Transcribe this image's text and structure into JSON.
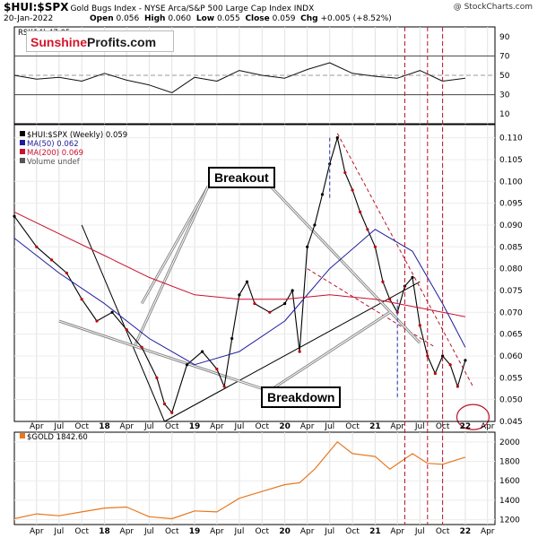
{
  "header": {
    "symbol": "$HUI:$SPX",
    "description": "Gold Bugs Index - NYSE Arca/S&P 500 Large Cap Index  INDX",
    "watermark": "@ StockCharts.com",
    "date": "20-Jan-2022",
    "open_label": "Open",
    "open": "0.056",
    "high_label": "High",
    "high": "0.060",
    "low_label": "Low",
    "low": "0.055",
    "close_label": "Close",
    "close": "0.059",
    "chg_label": "Chg",
    "chg": "+0.005 (+8.52%)"
  },
  "logo": {
    "part1": "Sunshine",
    "part2": "Profits.com"
  },
  "annotations": {
    "breakout": "Breakout",
    "breakdown": "Breakdown"
  },
  "colors": {
    "price": "#000000",
    "price_red": "#c00000",
    "ma50": "#1c1c9e",
    "ma200": "#c8102e",
    "gold": "#e8781e",
    "annotation_red": "#b8122a",
    "vline_blue": "#2233aa"
  },
  "chart_data": [
    {
      "type": "line",
      "panel": "RSI",
      "title": "RSI(14) 47.05",
      "ylim": [
        0,
        100
      ],
      "yticks": [
        10,
        30,
        50,
        70,
        90
      ],
      "reference_lines": [
        30,
        50,
        70
      ],
      "x": [
        "2017-01",
        "2017-04",
        "2017-07",
        "2017-10",
        "2018-01",
        "2018-04",
        "2018-07",
        "2018-10",
        "2019-01",
        "2019-04",
        "2019-07",
        "2019-10",
        "2020-01",
        "2020-04",
        "2020-07",
        "2020-10",
        "2021-01",
        "2021-04",
        "2021-07",
        "2021-10",
        "2022-01"
      ],
      "values": [
        50,
        46,
        48,
        44,
        52,
        45,
        40,
        32,
        48,
        44,
        55,
        50,
        47,
        56,
        63,
        52,
        49,
        47,
        55,
        44,
        47
      ]
    },
    {
      "type": "line",
      "panel": "price",
      "legend": [
        "$HUI:$SPX (Weekly) 0.059",
        "MA(50) 0.062",
        "MA(200) 0.069",
        "Volume undef"
      ],
      "ylim": [
        0.045,
        0.113
      ],
      "yticks": [
        0.045,
        0.05,
        0.055,
        0.06,
        0.065,
        0.07,
        0.075,
        0.08,
        0.085,
        0.09,
        0.095,
        0.1,
        0.105,
        0.11
      ],
      "ytick_labels": [
        "0.045",
        "0.050",
        "0.055",
        "0.060",
        "0.065",
        "0.070",
        "0.075",
        "0.080",
        "0.085",
        "0.090",
        "0.095",
        "0.100",
        "0.105",
        "0.110"
      ],
      "xtick_labels": [
        "Apr",
        "Jul",
        "Oct",
        "18",
        "Apr",
        "Jul",
        "Oct",
        "19",
        "Apr",
        "Jul",
        "Oct",
        "20",
        "Apr",
        "Jul",
        "Oct",
        "21",
        "Apr",
        "Jul",
        "Oct",
        "22",
        "Apr"
      ],
      "series": [
        {
          "name": "$HUI:$SPX (Weekly)",
          "x": [
            "2017-01",
            "2017-04",
            "2017-06",
            "2017-08",
            "2017-10",
            "2017-12",
            "2018-02",
            "2018-04",
            "2018-06",
            "2018-08",
            "2018-09",
            "2018-10",
            "2018-12",
            "2019-02",
            "2019-04",
            "2019-05",
            "2019-06",
            "2019-07",
            "2019-08",
            "2019-09",
            "2019-11",
            "2020-01",
            "2020-02",
            "2020-03",
            "2020-04",
            "2020-05",
            "2020-06",
            "2020-07",
            "2020-08",
            "2020-09",
            "2020-10",
            "2020-11",
            "2020-12",
            "2021-01",
            "2021-02",
            "2021-03",
            "2021-04",
            "2021-05",
            "2021-06",
            "2021-07",
            "2021-08",
            "2021-09",
            "2021-10",
            "2021-11",
            "2021-12",
            "2022-01"
          ],
          "values": [
            0.092,
            0.085,
            0.082,
            0.079,
            0.073,
            0.068,
            0.07,
            0.066,
            0.062,
            0.055,
            0.049,
            0.047,
            0.058,
            0.061,
            0.057,
            0.053,
            0.064,
            0.074,
            0.077,
            0.072,
            0.07,
            0.072,
            0.075,
            0.061,
            0.085,
            0.09,
            0.097,
            0.104,
            0.11,
            0.102,
            0.098,
            0.093,
            0.089,
            0.085,
            0.077,
            0.073,
            0.07,
            0.076,
            0.078,
            0.067,
            0.06,
            0.056,
            0.06,
            0.058,
            0.053,
            0.059
          ]
        },
        {
          "name": "MA(50)",
          "x": [
            "2017-01",
            "2017-07",
            "2018-01",
            "2018-07",
            "2019-01",
            "2019-07",
            "2020-01",
            "2020-07",
            "2021-01",
            "2021-06",
            "2021-10",
            "2022-01"
          ],
          "values": [
            0.087,
            0.079,
            0.072,
            0.064,
            0.058,
            0.061,
            0.068,
            0.08,
            0.089,
            0.084,
            0.072,
            0.062
          ]
        },
        {
          "name": "MA(200)",
          "x": [
            "2017-01",
            "2017-07",
            "2018-01",
            "2018-07",
            "2019-01",
            "2019-07",
            "2020-01",
            "2020-07",
            "2021-01",
            "2021-07",
            "2022-01"
          ],
          "values": [
            0.093,
            0.088,
            0.083,
            0.078,
            0.074,
            0.073,
            0.073,
            0.074,
            0.073,
            0.071,
            0.069
          ]
        }
      ]
    },
    {
      "type": "line",
      "panel": "gold",
      "legend": [
        "$GOLD 1842.60"
      ],
      "ylim": [
        1150,
        2100
      ],
      "yticks": [
        1200,
        1400,
        1600,
        1800,
        2000
      ],
      "ytick_labels": [
        "1200",
        "1400",
        "1600",
        "1800",
        "2000"
      ],
      "xtick_labels": [
        "Apr",
        "Jul",
        "Oct",
        "18",
        "Apr",
        "Jul",
        "Oct",
        "19",
        "Apr",
        "Jul",
        "Oct",
        "20",
        "Apr",
        "Jul",
        "Oct",
        "21",
        "Apr",
        "Jul",
        "Oct",
        "22",
        "Apr"
      ],
      "series": [
        {
          "name": "$GOLD",
          "x": [
            "2017-01",
            "2017-04",
            "2017-07",
            "2017-10",
            "2018-01",
            "2018-04",
            "2018-07",
            "2018-10",
            "2019-01",
            "2019-04",
            "2019-07",
            "2019-10",
            "2020-01",
            "2020-03",
            "2020-05",
            "2020-08",
            "2020-10",
            "2021-01",
            "2021-03",
            "2021-06",
            "2021-08",
            "2021-10",
            "2022-01"
          ],
          "values": [
            1210,
            1260,
            1240,
            1280,
            1320,
            1330,
            1230,
            1210,
            1290,
            1280,
            1420,
            1490,
            1560,
            1580,
            1720,
            2000,
            1880,
            1850,
            1720,
            1880,
            1780,
            1770,
            1842.6
          ]
        }
      ]
    }
  ]
}
